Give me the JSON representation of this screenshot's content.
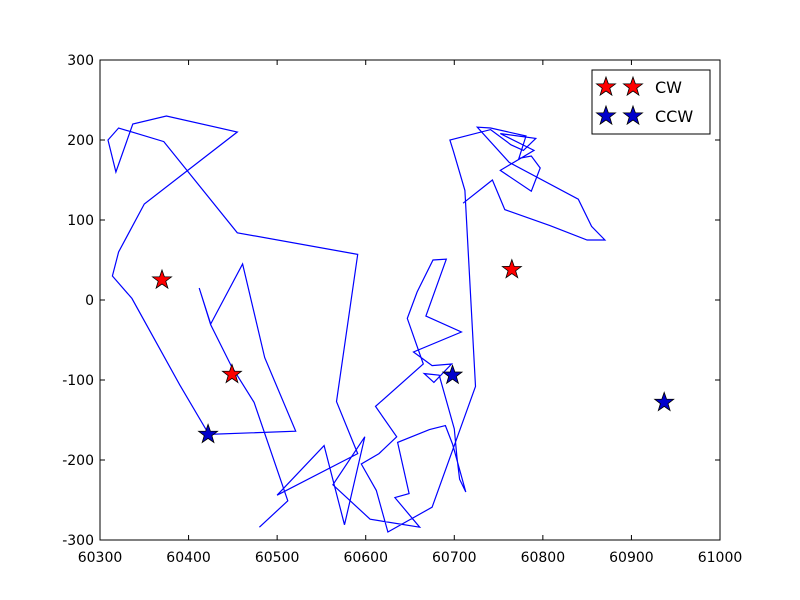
{
  "chart_data": {
    "type": "line",
    "xlim": [
      60300,
      61000
    ],
    "ylim": [
      -300,
      300
    ],
    "x_ticks": [
      60300,
      60400,
      60500,
      60600,
      60700,
      60800,
      60900,
      61000
    ],
    "y_ticks": [
      -300,
      -200,
      -100,
      0,
      100,
      200,
      300
    ],
    "grid": false,
    "legend_position": "top-right",
    "colors": {
      "line": "#0000ff",
      "cw": "#ff0000",
      "ccw": "#0000cc"
    },
    "track": {
      "x": [
        60480,
        60512,
        60474,
        60448,
        60425,
        60412,
        60425,
        60461,
        60486,
        60521,
        60423,
        60390,
        60336,
        60314,
        60321,
        60350,
        60420,
        60455,
        60375,
        60337,
        60318,
        60309,
        60321,
        60372,
        60455,
        60591,
        60567,
        60591,
        60500,
        60553,
        60576,
        60599,
        60563,
        60605,
        60661,
        60633,
        60649,
        60636,
        60672,
        60690,
        60698,
        60713,
        60706,
        60703,
        60700,
        60683,
        60666,
        60677,
        60697,
        60675,
        60654,
        60708,
        60668,
        60691,
        60676,
        60658,
        60647,
        60665,
        60611,
        60635,
        60615,
        60595,
        60612,
        60625,
        60675,
        60724,
        60712,
        60699,
        60695,
        60741,
        60764,
        60778,
        60792,
        60752,
        60790,
        60752,
        60787,
        60797,
        60787,
        60773,
        60781,
        60741,
        60726,
        60762,
        60840,
        60855,
        60870,
        60850,
        60808,
        60757,
        60743,
        60710
      ],
      "y": [
        -284,
        -251,
        -128,
        -82,
        -31,
        15,
        -30,
        45,
        -72,
        -164,
        -168,
        -106,
        2,
        30,
        60,
        120,
        180,
        210,
        230,
        220,
        160,
        200,
        215,
        198,
        84,
        57,
        -127,
        -192,
        -244,
        -182,
        -281,
        -171,
        -231,
        -274,
        -284,
        -247,
        -242,
        -178,
        -162,
        -157,
        -180,
        -240,
        -224,
        -196,
        -161,
        -94,
        -92,
        -103,
        -80,
        -82,
        -65,
        -40,
        -20,
        51,
        50,
        10,
        -23,
        -80,
        -133,
        -171,
        -192,
        -205,
        -238,
        -290,
        -259,
        -108,
        137,
        186,
        200,
        213,
        194,
        187,
        202,
        208,
        187,
        162,
        136,
        165,
        180,
        177,
        205,
        215,
        216,
        172,
        126,
        92,
        75,
        75,
        93,
        113,
        150,
        121
      ],
      "segments_note": ""
    },
    "cw_markers": [
      {
        "x": 60370,
        "y": 25
      },
      {
        "x": 60449,
        "y": -93
      },
      {
        "x": 60765,
        "y": 38
      }
    ],
    "ccw_markers": [
      {
        "x": 60422,
        "y": -168
      },
      {
        "x": 60698,
        "y": -94
      },
      {
        "x": 60937,
        "y": -128
      }
    ],
    "legend": [
      {
        "label": "CW",
        "color": "#ff0000"
      },
      {
        "label": "CCW",
        "color": "#0000cc"
      }
    ]
  }
}
